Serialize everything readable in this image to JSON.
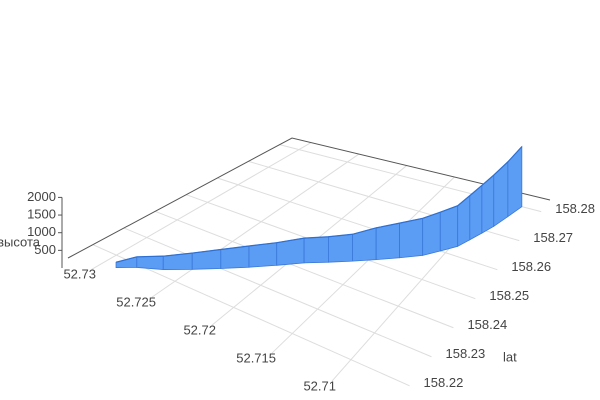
{
  "chart_data": {
    "type": "ribbon3d",
    "x": [
      52.729,
      52.728,
      52.7265,
      52.725,
      52.7235,
      52.722,
      52.7205,
      52.719,
      52.7175,
      52.716,
      52.7145,
      52.713,
      52.7115,
      52.7105,
      52.7095,
      52.709,
      52.7085,
      52.708,
      52.7075,
      52.707
    ],
    "y": [
      158.216,
      158.219,
      158.222,
      158.226,
      158.23,
      158.234,
      158.238,
      158.242,
      158.245,
      158.248,
      158.251,
      158.254,
      158.257,
      158.26,
      158.263,
      158.266,
      158.269,
      158.272,
      158.276,
      158.28
    ],
    "z": [
      150,
      300,
      380,
      460,
      540,
      600,
      640,
      700,
      720,
      760,
      900,
      980,
      1050,
      1100,
      1150,
      1250,
      1350,
      1450,
      1550,
      1700
    ],
    "color": "#5b9cf5",
    "xlim": [
      52.732,
      52.705
    ],
    "xticks": [
      52.73,
      52.725,
      52.72,
      52.715,
      52.71
    ],
    "ylim": [
      158.212,
      158.284
    ],
    "yticks": [
      158.22,
      158.23,
      158.24,
      158.25,
      158.26,
      158.27,
      158.28
    ],
    "zlim": [
      0,
      2000
    ],
    "zticks": [
      500,
      1000,
      1500,
      2000
    ],
    "ylabel": "lat",
    "zlabel": "высота",
    "grid": true
  }
}
